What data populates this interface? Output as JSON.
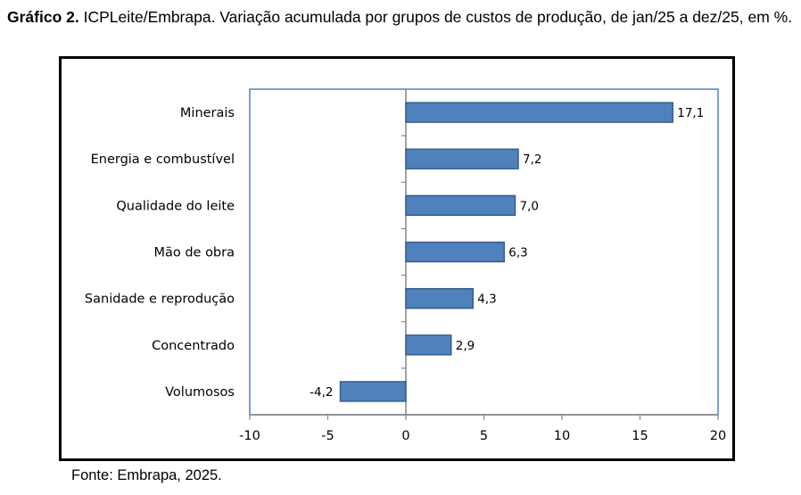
{
  "caption": {
    "prefix": "Gráfico 2.",
    "text": " ICPLeite/Embrapa. Variação acumulada por grupos de custos de produção, de jan/25 a dez/25, em %."
  },
  "source": "Fonte: Embrapa, 2025.",
  "chart_data": {
    "type": "bar",
    "orientation": "horizontal",
    "title": "ICPLeite/Embrapa. Variação acumulada por grupos de custos de produção, de jan/25 a dez/25, em %.",
    "categories": [
      "Minerais",
      "Energia e combustível",
      "Qualidade do leite",
      "Mão de obra",
      "Sanidade e reprodução",
      "Concentrado",
      "Volumosos"
    ],
    "values": [
      17.1,
      7.2,
      7.0,
      6.3,
      4.3,
      2.9,
      -4.2
    ],
    "data_labels": [
      "17,1",
      "7,2",
      "7,0",
      "6,3",
      "4,3",
      "2,9",
      "-4,2"
    ],
    "xlim": [
      -10,
      20
    ],
    "xticks": [
      -10,
      -5,
      0,
      5,
      10,
      15,
      20
    ],
    "xtick_labels": [
      "-10",
      "-5",
      "0",
      "5",
      "10",
      "15",
      "20"
    ],
    "xlabel": "",
    "ylabel": "",
    "grid": false,
    "legend": "none",
    "bar_color": "#4F81BD",
    "bar_edge_color": "#385D8A",
    "plot_border_color": "#4F81BD"
  }
}
